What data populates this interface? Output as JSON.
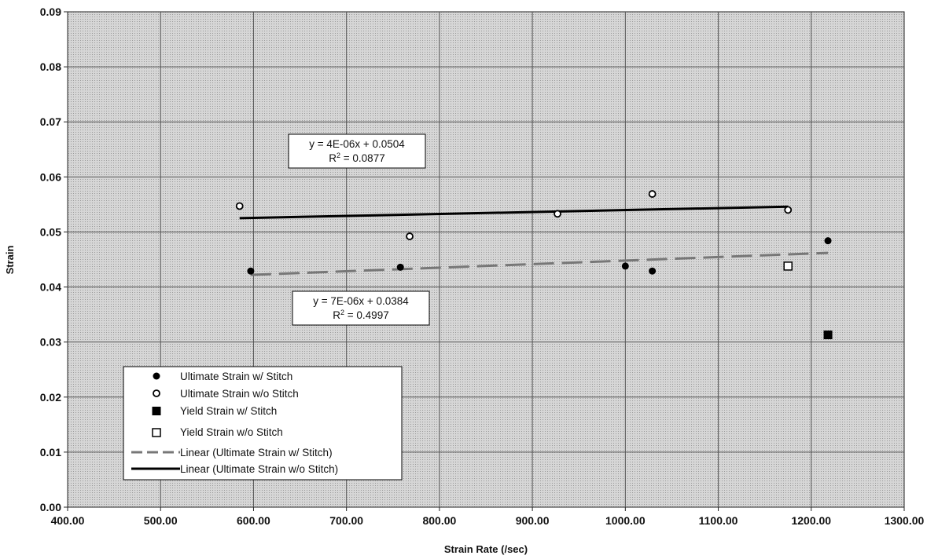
{
  "chart_data": {
    "type": "scatter",
    "title": "",
    "xlabel": "Strain Rate (/sec)",
    "ylabel": "Strain",
    "xlim": [
      400,
      1300
    ],
    "ylim": [
      0,
      0.09
    ],
    "x_ticks": [
      "400.00",
      "500.00",
      "600.00",
      "700.00",
      "800.00",
      "900.00",
      "1000.00",
      "1100.00",
      "1200.00",
      "1300.00"
    ],
    "y_ticks": [
      "0.00",
      "0.01",
      "0.02",
      "0.03",
      "0.04",
      "0.05",
      "0.06",
      "0.07",
      "0.08",
      "0.09"
    ],
    "grid": true,
    "legend_position": "bottom-left",
    "series": [
      {
        "name": "Ultimate Strain w/ Stitch",
        "marker": "filled-circle",
        "points": [
          {
            "x": 597,
            "y": 0.0429
          },
          {
            "x": 758,
            "y": 0.0436
          },
          {
            "x": 1000,
            "y": 0.0438
          },
          {
            "x": 1029,
            "y": 0.0429
          },
          {
            "x": 1218,
            "y": 0.0484
          }
        ]
      },
      {
        "name": "Ultimate Strain w/o Stitch",
        "marker": "open-circle",
        "points": [
          {
            "x": 585,
            "y": 0.0547
          },
          {
            "x": 768,
            "y": 0.0492
          },
          {
            "x": 927,
            "y": 0.0533
          },
          {
            "x": 1029,
            "y": 0.0569
          },
          {
            "x": 1175,
            "y": 0.054
          }
        ]
      },
      {
        "name": "Yield Strain w/ Stitch",
        "marker": "filled-square",
        "points": [
          {
            "x": 1218,
            "y": 0.0313
          }
        ]
      },
      {
        "name": "Yield Strain w/o Stitch",
        "marker": "open-square",
        "points": [
          {
            "x": 1175,
            "y": 0.0438
          }
        ]
      }
    ],
    "trendlines": [
      {
        "name": "Linear (Ultimate Strain w/ Stitch)",
        "style": "dashed",
        "color": "#777777",
        "x_start": 597,
        "y_start": 0.0422,
        "x_end": 1218,
        "y_end": 0.0462,
        "equation": "y = 7E-06x + 0.0384",
        "r2_label": "R",
        "r2_value": " = 0.4997"
      },
      {
        "name": "Linear (Ultimate Strain w/o Stitch)",
        "style": "solid",
        "color": "#000000",
        "x_start": 585,
        "y_start": 0.0525,
        "x_end": 1175,
        "y_end": 0.0546,
        "equation": "y = 4E-06x + 0.0504",
        "r2_label": "R",
        "r2_value": " = 0.0877"
      }
    ]
  }
}
